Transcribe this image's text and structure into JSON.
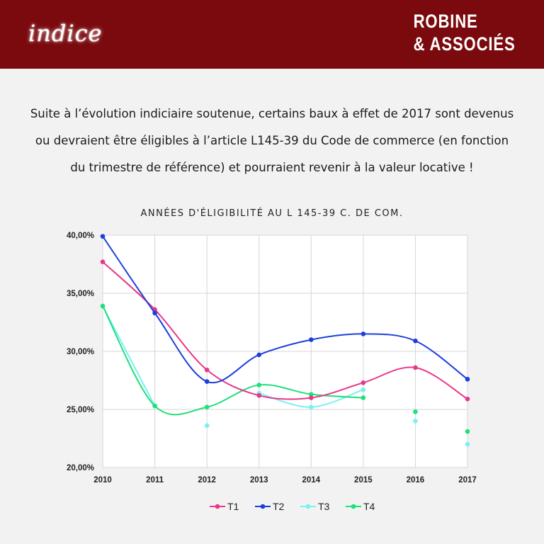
{
  "header": {
    "logo_text": "indice",
    "brand_line1": "ROBINE",
    "brand_line2": "& ASSOCIÉS"
  },
  "intro": {
    "line1": "Suite à l’évolution indiciaire soutenue, certains baux à effet de 2017 sont devenus",
    "line2": "ou devraient être éligibles à l’article L145-39 du Code de commerce (en fonction",
    "line3": "du trimestre de référence) et pourraient revenir à la valeur locative  !"
  },
  "chart_data": {
    "type": "line",
    "title": "ANNÉES D'ÉLIGIBILITÉ AU L 145-39 C. DE COM.",
    "x": [
      "2010",
      "2011",
      "2012",
      "2013",
      "2014",
      "2015",
      "2016",
      "2017"
    ],
    "y_ticks": [
      "20,00%",
      "25,00%",
      "30,00%",
      "35,00%",
      "40,00%"
    ],
    "ylim": [
      20,
      40
    ],
    "grid": true,
    "legend_position": "bottom",
    "series": [
      {
        "name": "T1",
        "color": "#e8388a",
        "values": [
          37.7,
          33.6,
          28.4,
          26.2,
          26.0,
          27.3,
          28.6,
          25.9
        ]
      },
      {
        "name": "T2",
        "color": "#1c3fdc",
        "values": [
          39.9,
          33.3,
          27.4,
          29.7,
          31.0,
          31.5,
          30.9,
          27.6
        ]
      },
      {
        "name": "T3",
        "color": "#79f0f6",
        "values": [
          33.9,
          25.3,
          23.6,
          26.4,
          25.2,
          26.7,
          24.0,
          22.0
        ]
      },
      {
        "name": "T4",
        "color": "#1fe07a",
        "values": [
          33.9,
          25.3,
          25.2,
          27.1,
          26.3,
          26.0,
          24.8,
          23.1
        ]
      }
    ]
  }
}
